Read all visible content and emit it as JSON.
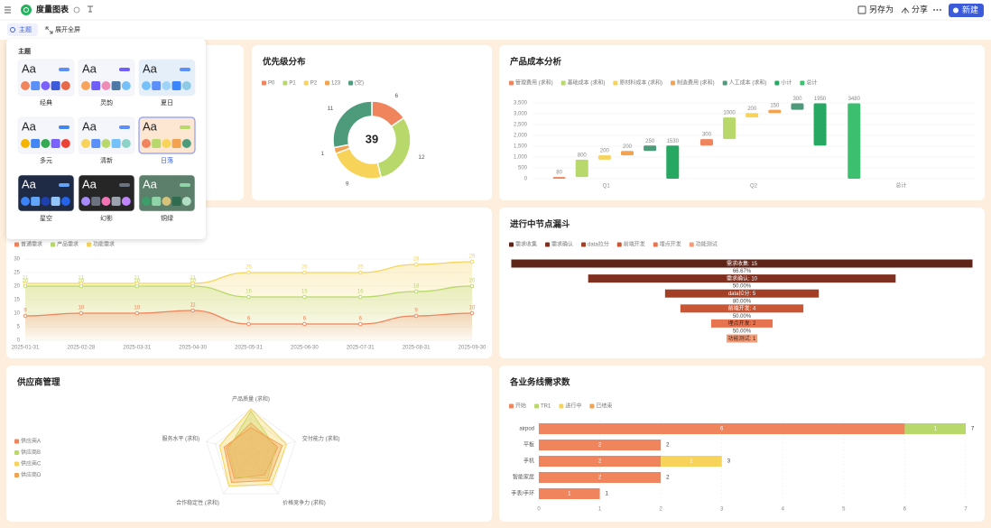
{
  "header": {
    "title": "度量图表",
    "actions": [
      "另存为",
      "分享",
      "新建"
    ]
  },
  "toolbar": [
    "主题",
    "展开全屏"
  ],
  "theme_panel": {
    "title": "主题",
    "sample": "Aa",
    "themes": [
      "经典",
      "灵韵",
      "夏日",
      "多元",
      "清新",
      "日落",
      "星空",
      "幻影",
      "铜绿"
    ],
    "selected": "日落"
  },
  "chart_data": [
    {
      "type": "pie",
      "title": "优先级分布",
      "donut": true,
      "center_label": 39,
      "categories": [
        "P0",
        "P1",
        "P2",
        "123",
        "(空)"
      ],
      "values": [
        6,
        12,
        9,
        1,
        11
      ],
      "colors": [
        "#f0845c",
        "#b8d86b",
        "#f7d35a",
        "#f3a24f",
        "#4e9b7c"
      ]
    },
    {
      "type": "waterfall",
      "title": "产品成本分析",
      "categories": [
        "Q1",
        "Q2",
        "总计"
      ],
      "series": [
        {
          "name": "管理费用 (求和)",
          "color": "#f0845c",
          "values": [
            80,
            300,
            null
          ]
        },
        {
          "name": "基础成本 (求和)",
          "color": "#b8d86b",
          "values": [
            800,
            1000,
            null
          ]
        },
        {
          "name": "原材料成本 (求和)",
          "color": "#f7d35a",
          "values": [
            200,
            200,
            null
          ]
        },
        {
          "name": "制造费用 (求和)",
          "color": "#f3a24f",
          "values": [
            200,
            150,
            null
          ]
        },
        {
          "name": "人工成本 (求和)",
          "color": "#4e9b7c",
          "values": [
            250,
            300,
            null
          ]
        }
      ],
      "subtotal": {
        "name": "小计",
        "color": "#26a862",
        "values": [
          1530,
          1950,
          null
        ]
      },
      "total": {
        "name": "总计",
        "color": "#3cc06f",
        "values": [
          null,
          null,
          3480
        ]
      },
      "ylim": [
        0,
        3500
      ],
      "yticks": [
        0,
        500,
        {
          "value": 1000,
          "label": "1,000"
        },
        {
          "value": 1500,
          "label": "1,500"
        },
        {
          "value": 2000,
          "label": "2,000"
        },
        {
          "value": 2500,
          "label": "2,500"
        },
        {
          "value": 3000,
          "label": "3,000"
        },
        {
          "value": 3500,
          "label": "3,500"
        }
      ],
      "grid": true
    },
    {
      "type": "area",
      "categories": [
        "2025-01-31",
        "2025-02-28",
        "2025-03-31",
        "2025-04-30",
        "2025-05-31",
        "2025-06-30",
        "2025-07-31",
        "2025-08-31",
        "2025-09-30"
      ],
      "series": [
        {
          "name": "普通需求",
          "color": "#f0845c",
          "values": [
            9,
            10,
            10,
            11,
            6,
            6,
            6,
            9,
            10
          ]
        },
        {
          "name": "产品需求",
          "color": "#b8d86b",
          "values": [
            20,
            20,
            20,
            20,
            16,
            16,
            16,
            18,
            20
          ]
        },
        {
          "name": "功能需求",
          "color": "#f7d35a",
          "values": [
            21,
            21,
            21,
            21,
            25,
            25,
            25,
            28,
            29
          ]
        }
      ],
      "ylim": [
        0,
        30
      ],
      "yticks": [
        0,
        5,
        10,
        15,
        20,
        25,
        30
      ],
      "grid": true
    },
    {
      "type": "funnel",
      "title": "进行中节点漏斗",
      "categories": [
        "需求收集",
        "需求确认",
        "data拉分",
        "前端开发",
        "埋点开发",
        "功能测试"
      ],
      "values": [
        15,
        10,
        5,
        4,
        2,
        1
      ],
      "value_labels": [
        "需求收集: 15",
        "需求确认: 10",
        "data拉分: 5",
        "前端开发: 4",
        "埋点开发: 2",
        "功能测试: 1"
      ],
      "conversion_rates": [
        66.67,
        50,
        80,
        50,
        50
      ],
      "conversion_labels": [
        "66.67%",
        "50.00%",
        "80.00%",
        "50.00%",
        "50.00%"
      ],
      "colors": [
        "#5e2418",
        "#7f3020",
        "#a33f26",
        "#c95634",
        "#e87350",
        "#f49c78"
      ]
    },
    {
      "type": "radar",
      "title": "供应商管理",
      "indicators": [
        "产品质量 (求和)",
        "交付能力 (求和)",
        "价格竞争力 (求和)",
        "合作稳定性 (求和)",
        "服务水平 (求和)"
      ],
      "rlim": [
        0,
        100
      ],
      "series": [
        {
          "name": "供应商A",
          "color": "#f0845c",
          "values": [
            70,
            60,
            50,
            60,
            55
          ]
        },
        {
          "name": "供应商B",
          "color": "#b8d86b",
          "values": [
            95,
            55,
            60,
            55,
            50
          ]
        },
        {
          "name": "供应商C",
          "color": "#f7d35a",
          "values": [
            100,
            80,
            75,
            80,
            70
          ]
        },
        {
          "name": "供应商D",
          "color": "#f3a24f",
          "values": [
            60,
            70,
            65,
            70,
            60
          ]
        }
      ]
    },
    {
      "type": "hbar",
      "title": "各业务线需求数",
      "categories": [
        "airpod",
        "平板",
        "手机",
        "智能家居",
        "手表/手环"
      ],
      "series": [
        {
          "name": "开始",
          "color": "#f0845c",
          "values": [
            6,
            2,
            2,
            2,
            1
          ]
        },
        {
          "name": "TR1",
          "color": "#b8d86b",
          "values": [
            1,
            null,
            null,
            null,
            null
          ]
        },
        {
          "name": "进行中",
          "color": "#f7d35a",
          "values": [
            null,
            null,
            1,
            null,
            null
          ]
        },
        {
          "name": "已结束",
          "color": "#f3a24f",
          "values": [
            null,
            null,
            null,
            null,
            null
          ]
        }
      ],
      "totals": [
        7,
        2,
        3,
        2,
        1
      ],
      "xlim": [
        0,
        7
      ],
      "xticks": [
        0,
        1,
        2,
        3,
        4,
        5,
        6,
        7
      ],
      "grid": true
    }
  ]
}
